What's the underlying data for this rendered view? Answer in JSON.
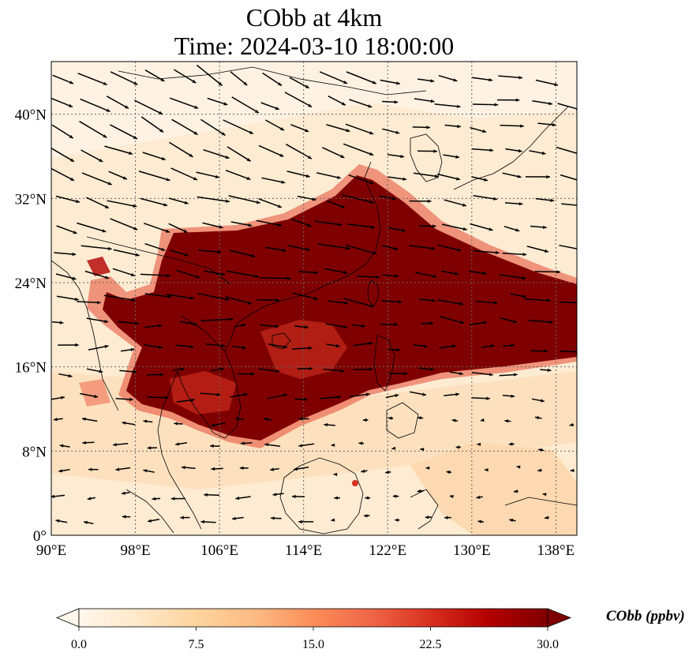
{
  "title": {
    "line1": "CObb at 4km",
    "line2": "Time: 2024-03-10 18:00:00"
  },
  "map": {
    "lon_range": [
      90,
      140
    ],
    "lat_range": [
      0,
      45
    ],
    "lon_ticks": [
      "90°E",
      "98°E",
      "106°E",
      "114°E",
      "122°E",
      "130°E",
      "138°E"
    ],
    "lat_ticks": [
      "0°",
      "8°N",
      "16°N",
      "24°N",
      "32°N",
      "40°N"
    ],
    "lon_tick_values": [
      90,
      98,
      106,
      114,
      122,
      130,
      138
    ],
    "lat_tick_values": [
      0,
      8,
      16,
      24,
      32,
      40
    ],
    "gridlines": true,
    "plume_color": "#7f0000",
    "background_color": "#fdebd2"
  },
  "colorbar": {
    "label": "CObb (ppbv)",
    "min": 0,
    "max": 30,
    "ticks": [
      "0.0",
      "7.5",
      "15.0",
      "22.5",
      "30.0"
    ],
    "tick_values": [
      0,
      7.5,
      15,
      22.5,
      30
    ],
    "colormap": [
      "#fff7ec",
      "#fee8c8",
      "#fdd49e",
      "#fdbb84",
      "#fc8d59",
      "#ef6548",
      "#d7301f",
      "#b30000",
      "#7f0000"
    ],
    "extend": "both"
  }
}
